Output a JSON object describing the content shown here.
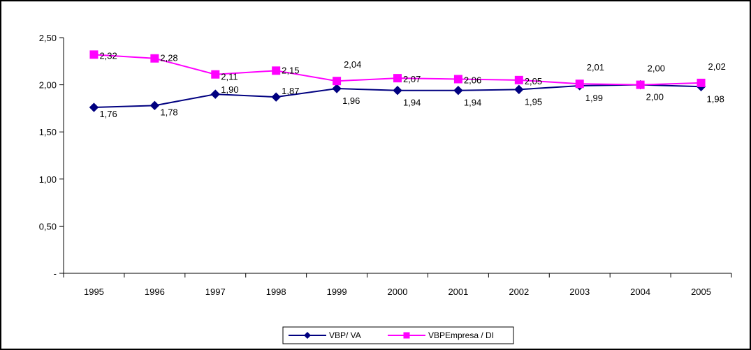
{
  "chart_data": {
    "type": "line",
    "title": "",
    "xlabel": "",
    "ylabel": "",
    "categories": [
      "1995",
      "1996",
      "1997",
      "1998",
      "1999",
      "2000",
      "2001",
      "2002",
      "2003",
      "2004",
      "2005"
    ],
    "ylim": [
      0,
      2.5
    ],
    "yticks": [
      0,
      0.5,
      1.0,
      1.5,
      2.0,
      2.5
    ],
    "ytick_labels": [
      "-",
      "0,50",
      "1,00",
      "1,50",
      "2,00",
      "2,50"
    ],
    "grid": false,
    "legend_position": "bottom",
    "series": [
      {
        "name": "VBP/ VA",
        "color": "#000080",
        "marker": "diamond",
        "values": [
          1.76,
          1.78,
          1.9,
          1.87,
          1.96,
          1.94,
          1.94,
          1.95,
          1.99,
          2.0,
          1.98
        ],
        "labels": [
          "1,76",
          "1,78",
          "1,90",
          "1,87",
          "1,96",
          "1,94",
          "1,94",
          "1,95",
          "1,99",
          "2,00",
          "1,98"
        ]
      },
      {
        "name": "VBPEmpresa / DI",
        "color": "#FF00FF",
        "marker": "square",
        "values": [
          2.32,
          2.28,
          2.11,
          2.15,
          2.04,
          2.07,
          2.06,
          2.05,
          2.01,
          2.0,
          2.02
        ],
        "labels": [
          "2,32",
          "2,28",
          "2,11",
          "2,15",
          "2,04",
          "2,07",
          "2,06",
          "2,05",
          "2,01",
          "2,00",
          "2,02"
        ]
      }
    ]
  }
}
